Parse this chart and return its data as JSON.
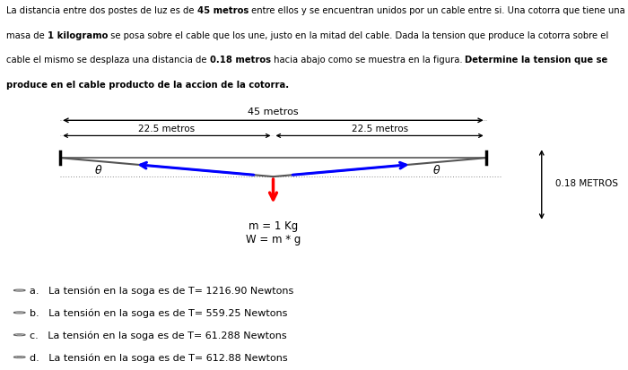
{
  "paragraph": "La distancia entre dos postes de luz es de **45 metros** entre ellos y se encuentran unidos por un cable entre si. Una cotorra que tiene una\nmasa de **1 kilogramo** se posa sobre el cable que los une, justo en la mitad del cable. Dada la tension que produce la cotorra sobre el\ncable el mismo se desplaza una distancia de **0.18 metros** hacia abajo como se muestra en la figura. **Determine la tension que se\nproduce en el cable producto de la accion de la cotorra.**",
  "diagram_bg": "#e0e0e0",
  "options": [
    "a.   La tensión en la soga es de T= 1216.90 Newtons",
    "b.   La tensión en la soga es de T= 559.25 Newtons",
    "c.   La tensión en la soga es de T= 61.288 Newtons",
    "d.   La tensión en la soga es de T= 612.88 Newtons"
  ]
}
